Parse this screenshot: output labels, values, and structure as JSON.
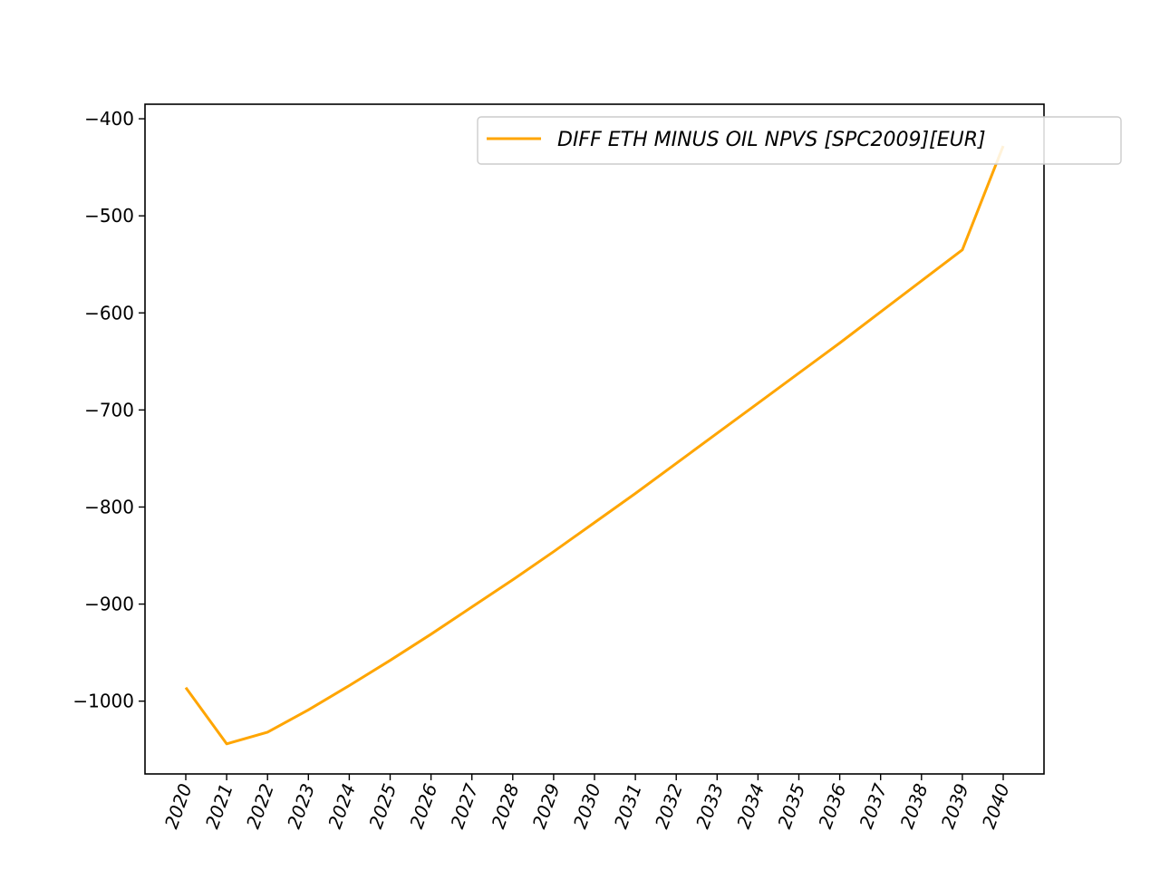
{
  "chart_data": {
    "type": "line",
    "title": "",
    "xlabel": "",
    "ylabel": "",
    "x": [
      "2020",
      "2021",
      "2022",
      "2023",
      "2024",
      "2025",
      "2026",
      "2027",
      "2028",
      "2029",
      "2030",
      "2031",
      "2032",
      "2033",
      "2034",
      "2035",
      "2036",
      "2037",
      "2038",
      "2039",
      "2040"
    ],
    "series": [
      {
        "name": "DIFF ETH MINUS OIL NPVS [SPC2009][EUR]",
        "color": "#FFA500",
        "values": [
          -986,
          -1044,
          -1032,
          -1009,
          -984,
          -958,
          -931,
          -903,
          -875,
          -846,
          -816,
          -786,
          -755,
          -724,
          -693,
          -662,
          -631,
          -599,
          -567,
          -535,
          -428
        ]
      }
    ],
    "ylim": [
      -1075,
      -385
    ],
    "yticks": [
      -400,
      -500,
      -600,
      -700,
      -800,
      -900,
      -1000
    ],
    "ytick_labels": [
      "−400",
      "−500",
      "−600",
      "−700",
      "−800",
      "−900",
      "−1000"
    ],
    "grid": false,
    "legend_position": "upper right"
  }
}
